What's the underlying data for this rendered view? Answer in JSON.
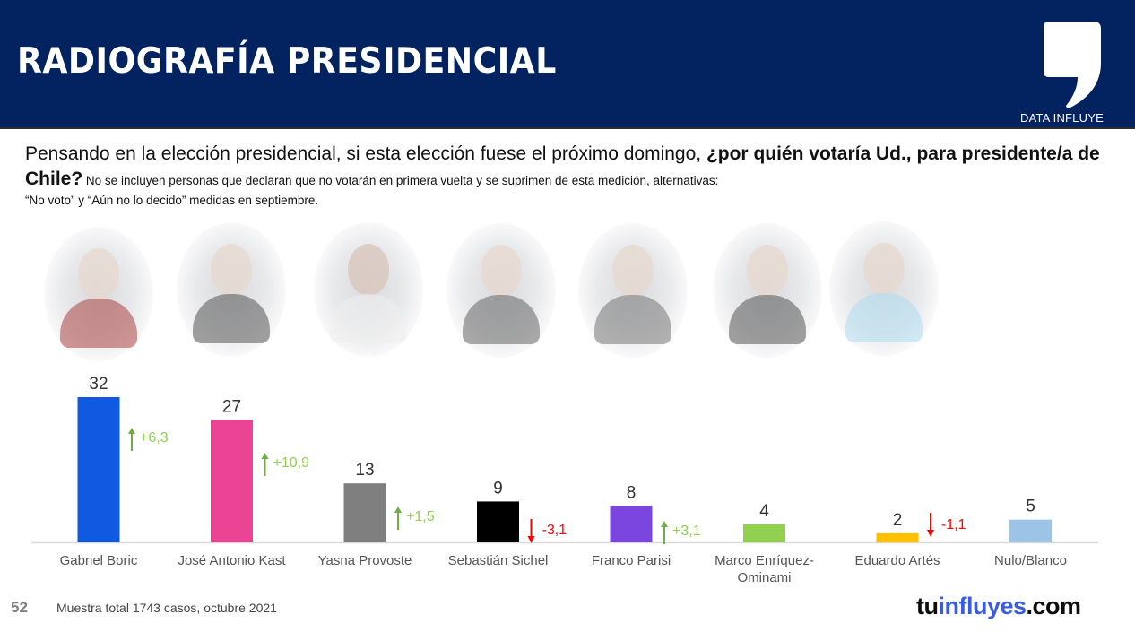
{
  "header": {
    "title": "RADIOGRAFÍA PRESIDENCIAL",
    "brand_label": "DATA INFLUYE",
    "brand_icon": "comma-quote-icon",
    "background_color": "#022260"
  },
  "question": {
    "intro": "Pensando en la elección presidencial, si esta elección fuese el próximo domingo, ",
    "bold": "¿por quién votaría Ud., para presidente/a de Chile?",
    "note_line1": " No se incluyen personas que declaran que no votarán en primera vuelta y se suprimen de esta medición, alternativas:",
    "note_line2": "“No voto” y “Aún no lo decido” medidas en septiembre."
  },
  "photos": [
    {
      "name": "Gabriel Boric",
      "icon": "candidate-photo"
    },
    {
      "name": "José Antonio Kast",
      "icon": "candidate-photo"
    },
    {
      "name": "Yasna Provoste",
      "icon": "candidate-photo"
    },
    {
      "name": "Sebastián Sichel",
      "icon": "candidate-photo"
    },
    {
      "name": "Franco Parisi",
      "icon": "candidate-photo"
    },
    {
      "name": "Marco Enríquez-Ominami",
      "icon": "candidate-photo"
    },
    {
      "name": "Eduardo Artés",
      "icon": "candidate-photo"
    }
  ],
  "chart_data": {
    "type": "bar",
    "title": "",
    "xlabel": "",
    "ylabel": "",
    "ylim": [
      0,
      35
    ],
    "grid": false,
    "legend": "none",
    "categories": [
      "Gabriel Boric",
      "José Antonio Kast",
      "Yasna Provoste",
      "Sebastián Sichel",
      "Franco Parisi",
      "Marco Enríquez-Ominami",
      "Eduardo Artés",
      "Nulo/Blanco"
    ],
    "category_lines": [
      [
        "Gabriel Boric"
      ],
      [
        "José Antonio Kast"
      ],
      [
        "Yasna Provoste"
      ],
      [
        "Sebastián Sichel"
      ],
      [
        "Franco Parisi"
      ],
      [
        "Marco Enríquez-",
        "Ominami"
      ],
      [
        "Eduardo Artés"
      ],
      [
        "Nulo/Blanco"
      ]
    ],
    "values": [
      32,
      27,
      13,
      9,
      8,
      4,
      2,
      5
    ],
    "value_labels": [
      "32",
      "27",
      "13",
      "9",
      "8",
      "4",
      "2",
      "5"
    ],
    "colors": [
      "#0f5ae0",
      "#ec4495",
      "#7f7f7f",
      "#000000",
      "#7b45e0",
      "#92d050",
      "#ffc000",
      "#9dc3e6"
    ],
    "changes": [
      {
        "label": "+6,3",
        "value": 6.3,
        "direction": "up"
      },
      {
        "label": "+10,9",
        "value": 10.9,
        "direction": "up"
      },
      {
        "label": "+1,5",
        "value": 1.5,
        "direction": "up"
      },
      {
        "label": "-3,1",
        "value": -3.1,
        "direction": "down"
      },
      {
        "label": "+3,1",
        "value": 3.1,
        "direction": "up"
      },
      null,
      {
        "label": "-1,1",
        "value": -1.1,
        "direction": "down"
      },
      null
    ],
    "change_colors": {
      "up": "#92d050",
      "up_arrow": "#70ad47",
      "down": "#ff0000"
    }
  },
  "footer": {
    "page_number": "52",
    "source": "Muestra total 1743 casos, octubre 2021",
    "site_part1": "tu",
    "site_part2": "influyes",
    "site_part3": ".com"
  }
}
